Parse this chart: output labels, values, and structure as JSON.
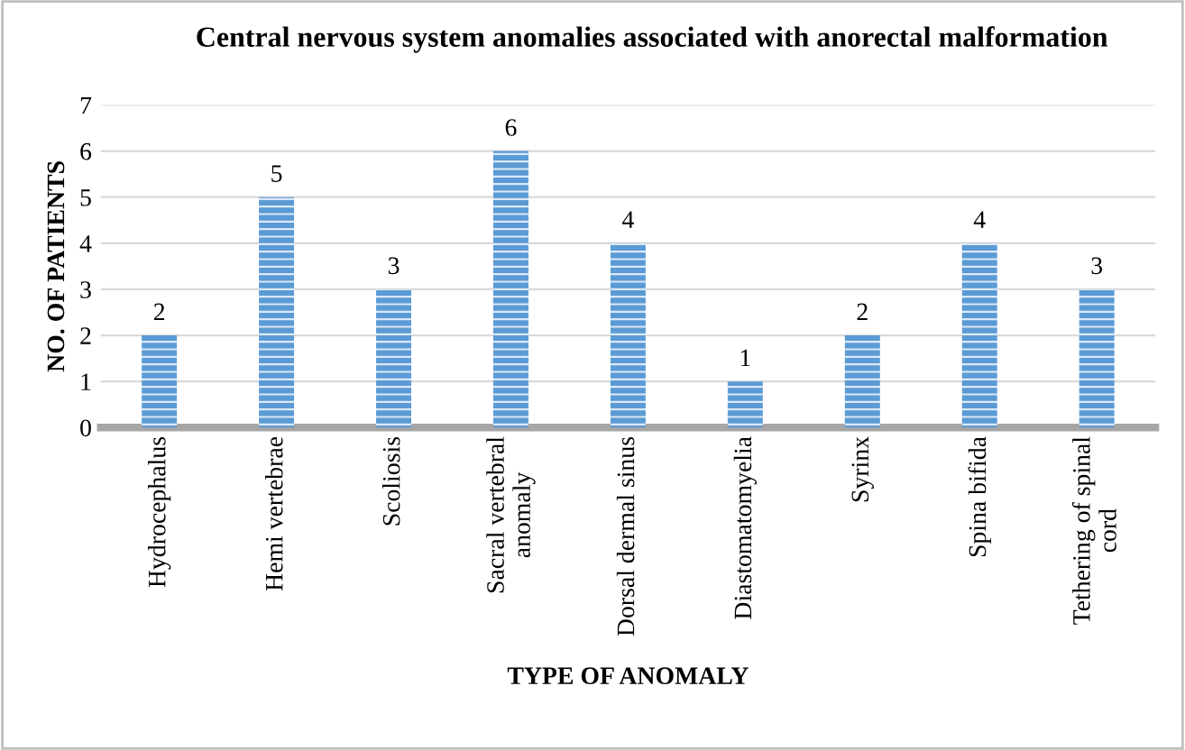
{
  "chart_data": {
    "type": "bar",
    "title": "Central nervous system anomalies associated with anorectal malformation",
    "xlabel": "TYPE OF ANOMALY",
    "ylabel": "NO. OF PATIENTS",
    "categories": [
      "Hydrocephalus",
      "Hemi vertebrae",
      "Scoliosis",
      "Sacral vertebral anomaly",
      "Dorsal dermal sinus",
      "Diastomatomyelia",
      "Syrinx",
      "Spina bifida",
      "Tethering of spinal cord"
    ],
    "values": [
      2,
      5,
      3,
      6,
      4,
      1,
      2,
      4,
      3
    ],
    "color": "#5b9bd5",
    "ylim": [
      0,
      7
    ],
    "yticks": [
      0,
      1,
      2,
      3,
      4,
      5,
      6,
      7
    ],
    "grid": "y",
    "data_labels": true,
    "legend": false
  }
}
